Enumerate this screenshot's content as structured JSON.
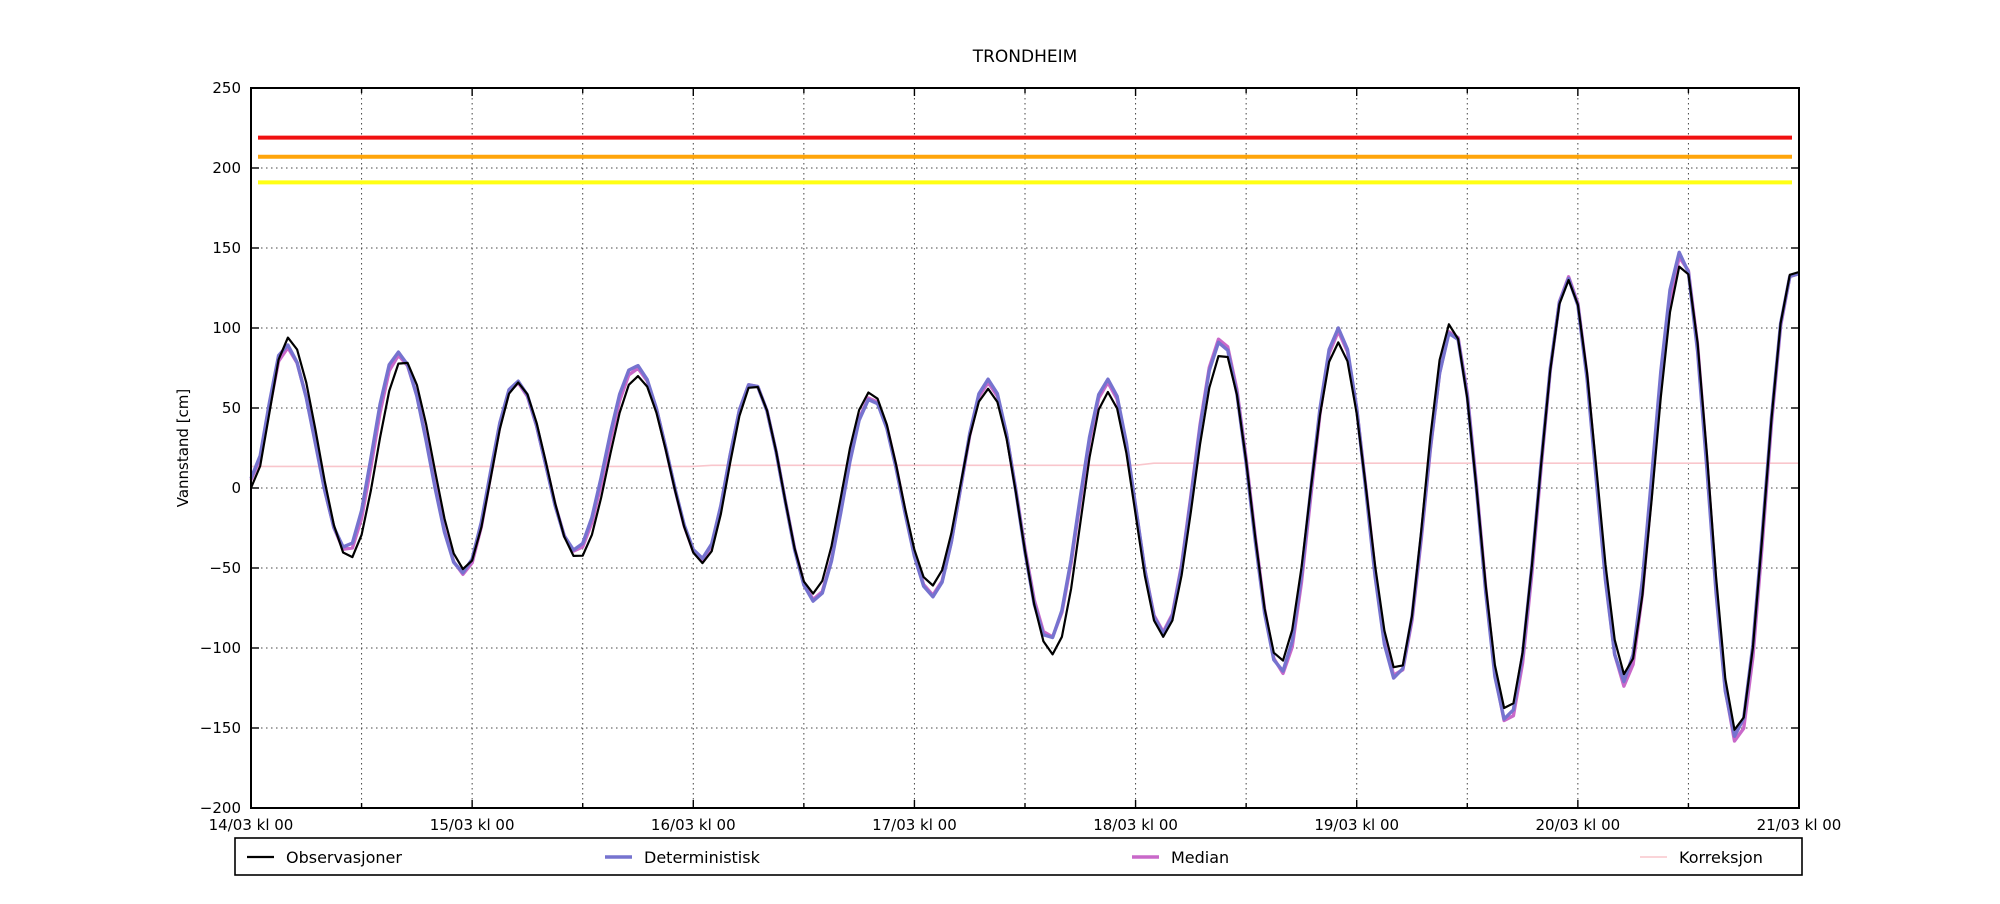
{
  "title": "TRONDHEIM",
  "ylabel": "Vannstand [cm]",
  "background_color": "#ffffff",
  "legend": {
    "position": "bottom",
    "items": [
      {
        "label": "Observasjoner",
        "color": "#000000",
        "line_width": 2.2
      },
      {
        "label": "Deterministisk",
        "color": "#7673cf",
        "line_width": 3.4
      },
      {
        "label": "Median",
        "color": "#c968c9",
        "line_width": 3.4
      },
      {
        "label": "Korreksjon",
        "color": "#f9c6cc",
        "line_width": 1.6
      }
    ]
  },
  "chart_data": {
    "type": "line",
    "title": "TRONDHEIM",
    "xlabel": "",
    "ylabel": "Vannstand [cm]",
    "ylim": [
      -200,
      250
    ],
    "x_hours_range": [
      0,
      168
    ],
    "grid": "dotted; horizontal every 50 cm, vertical every 12 h",
    "legend_position": "bottom",
    "y_ticks": [
      250,
      200,
      150,
      100,
      50,
      0,
      -50,
      -100,
      -150,
      -200
    ],
    "x_ticks": [
      {
        "hours": 0,
        "label": "14/03 kl 00"
      },
      {
        "hours": 24,
        "label": "15/03 kl 00"
      },
      {
        "hours": 48,
        "label": "16/03 kl 00"
      },
      {
        "hours": 72,
        "label": "17/03 kl 00"
      },
      {
        "hours": 96,
        "label": "18/03 kl 00"
      },
      {
        "hours": 120,
        "label": "19/03 kl 00"
      },
      {
        "hours": 144,
        "label": "20/03 kl 00"
      },
      {
        "hours": 168,
        "label": "21/03 kl 00"
      }
    ],
    "threshold_lines": [
      {
        "name": "level-red",
        "value_cm": 219,
        "color": "#f01010",
        "width": 4
      },
      {
        "name": "level-orange",
        "value_cm": 207,
        "color": "#ffa50a",
        "width": 4
      },
      {
        "name": "level-yellow",
        "value_cm": 191,
        "color": "#ffff14",
        "width": 4
      }
    ],
    "series": [
      {
        "name": "Korreksjon",
        "color": "#f9c6cc",
        "width": 1.6,
        "interpolation": "linear",
        "points_t_hours_value_cm": [
          [
            0,
            13.5
          ],
          [
            48,
            13.5
          ],
          [
            50,
            14.2
          ],
          [
            96,
            14.2
          ],
          [
            98,
            15.5
          ],
          [
            168,
            15.5
          ]
        ]
      },
      {
        "name": "Median",
        "color": "#c968c9",
        "width": 3.4,
        "interpolation": "cosine-between-extremes",
        "sample_step_hours": 1,
        "extremes_t_hours_value_cm": [
          [
            0,
            5
          ],
          [
            3.8,
            88
          ],
          [
            10.5,
            -40
          ],
          [
            16,
            83
          ],
          [
            23.1,
            -54
          ],
          [
            28.8,
            66
          ],
          [
            35.3,
            -40
          ],
          [
            41.8,
            75
          ],
          [
            49,
            -45
          ],
          [
            54.4,
            66
          ],
          [
            61.2,
            -70
          ],
          [
            67.3,
            57
          ],
          [
            74,
            -67
          ],
          [
            80,
            66
          ],
          [
            86.7,
            -94
          ],
          [
            93,
            66
          ],
          [
            99,
            -90
          ],
          [
            105.3,
            94
          ],
          [
            111.9,
            -116
          ],
          [
            118,
            98
          ],
          [
            124.4,
            -119
          ],
          [
            130.4,
            100
          ],
          [
            136.4,
            -148
          ],
          [
            143,
            132
          ],
          [
            149.1,
            -124
          ],
          [
            155.3,
            146
          ],
          [
            161.3,
            -160
          ],
          [
            167.3,
            134
          ],
          [
            168,
            134
          ]
        ]
      },
      {
        "name": "Deterministisk",
        "color": "#7673cf",
        "width": 3.4,
        "interpolation": "cosine-between-extremes",
        "sample_step_hours": 1,
        "extremes_t_hours_value_cm": [
          [
            0,
            6
          ],
          [
            3.7,
            90
          ],
          [
            10.4,
            -38
          ],
          [
            15.9,
            85
          ],
          [
            23,
            -53
          ],
          [
            28.8,
            67
          ],
          [
            35.2,
            -39
          ],
          [
            41.7,
            77
          ],
          [
            49,
            -44
          ],
          [
            54.4,
            66
          ],
          [
            61.2,
            -71
          ],
          [
            67.3,
            56
          ],
          [
            74,
            -68
          ],
          [
            80,
            68
          ],
          [
            86.6,
            -95
          ],
          [
            93,
            68
          ],
          [
            99,
            -91
          ],
          [
            105.3,
            92
          ],
          [
            111.8,
            -115
          ],
          [
            118,
            100
          ],
          [
            124.3,
            -120
          ],
          [
            130.4,
            99
          ],
          [
            136.3,
            -146
          ],
          [
            143,
            131
          ],
          [
            149,
            -121
          ],
          [
            155.2,
            148
          ],
          [
            161.2,
            -156
          ],
          [
            167.3,
            134
          ],
          [
            168,
            134
          ]
        ]
      },
      {
        "name": "Observasjoner",
        "color": "#000000",
        "width": 2.2,
        "interpolation": "cosine-between-extremes",
        "sample_step_hours": 1,
        "extremes_t_hours_value_cm": [
          [
            0,
            0
          ],
          [
            4,
            94
          ],
          [
            10.7,
            -44
          ],
          [
            16.5,
            80
          ],
          [
            23.2,
            -51
          ],
          [
            28.9,
            66
          ],
          [
            35.5,
            -44
          ],
          [
            41.9,
            70
          ],
          [
            49.1,
            -47
          ],
          [
            54.5,
            65
          ],
          [
            61,
            -66
          ],
          [
            67.2,
            60
          ],
          [
            73.9,
            -61
          ],
          [
            80,
            62
          ],
          [
            87,
            -104
          ],
          [
            93,
            60
          ],
          [
            99,
            -93
          ],
          [
            105.5,
            85
          ],
          [
            111.7,
            -109
          ],
          [
            118,
            91
          ],
          [
            124.5,
            -115
          ],
          [
            130.2,
            103
          ],
          [
            136.4,
            -140
          ],
          [
            143,
            130
          ],
          [
            149.2,
            -117
          ],
          [
            155.4,
            141
          ],
          [
            161.3,
            -153
          ],
          [
            167.3,
            135
          ],
          [
            168,
            135
          ]
        ]
      }
    ]
  }
}
